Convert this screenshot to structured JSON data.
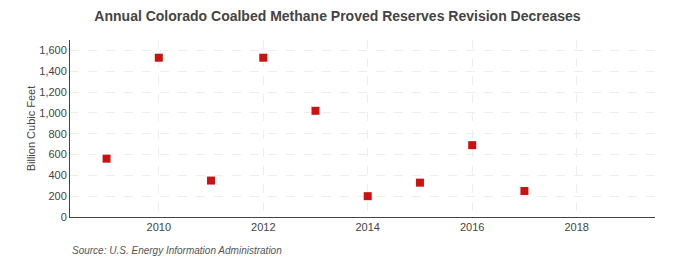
{
  "chart_data": {
    "type": "scatter",
    "title": "Annual Colorado Coalbed Methane Proved Reserves Revision Decreases",
    "ylabel": "Billion Cubic Feet",
    "source": "Source: U.S. Energy Information Administration",
    "x": [
      2009,
      2010,
      2011,
      2012,
      2013,
      2014,
      2015,
      2016,
      2017
    ],
    "values": [
      560,
      1530,
      350,
      1530,
      1020,
      200,
      330,
      690,
      250
    ],
    "color": "#cc1111",
    "marker": "square",
    "xlim": [
      2008.3,
      2019.5
    ],
    "xticks": [
      2010,
      2012,
      2014,
      2016,
      2018
    ],
    "ylim": [
      0,
      1700
    ],
    "yticks": [
      0,
      200,
      400,
      600,
      800,
      {
        "value": 1000,
        "label": "1,000"
      },
      {
        "value": 1200,
        "label": "1,200"
      },
      {
        "value": 1400,
        "label": "1,400"
      },
      {
        "value": 1600,
        "label": "1,600"
      }
    ],
    "grid": true
  }
}
